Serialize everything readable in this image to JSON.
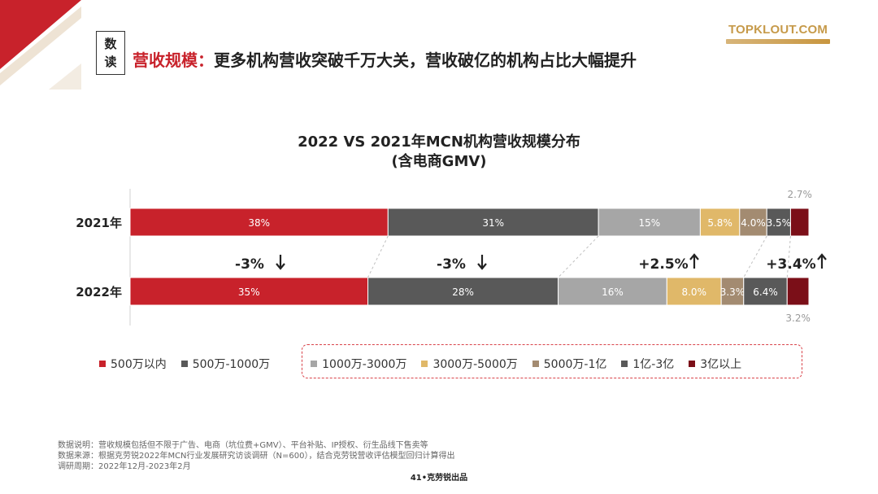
{
  "header": {
    "badge": [
      "数",
      "读"
    ],
    "title_accent": "营收规模：",
    "title_rest": "更多机构营收突破千万大关，营收破亿的机构占比大幅提升",
    "brand": "TOPKLOUT.COM"
  },
  "chart_data": {
    "type": "bar",
    "orientation": "horizontal",
    "stacked": true,
    "title": [
      "2022 VS 2021年MCN机构营收规模分布",
      "(含电商GMV)"
    ],
    "categories": [
      "2021年",
      "2022年"
    ],
    "series": [
      {
        "name": "500万以内",
        "values": [
          38,
          35
        ],
        "labels": [
          "38%",
          "35%"
        ],
        "color": "#c8222b"
      },
      {
        "name": "500万-1000万",
        "values": [
          31,
          28
        ],
        "labels": [
          "31%",
          "28%"
        ],
        "color": "#595959"
      },
      {
        "name": "1000万-3000万",
        "values": [
          15,
          16
        ],
        "labels": [
          "15%",
          "16%"
        ],
        "color": "#a6a6a6"
      },
      {
        "name": "3000万-5000万",
        "values": [
          5.8,
          8.0
        ],
        "labels": [
          "5.8%",
          "8.0%"
        ],
        "color": "#e0b869"
      },
      {
        "name": "5000万-1亿",
        "values": [
          4.0,
          3.3
        ],
        "labels": [
          "4.0%",
          "3.3%"
        ],
        "color": "#a38b71"
      },
      {
        "name": "1亿-3亿",
        "values": [
          3.5,
          6.4
        ],
        "labels": [
          "3.5%",
          "6.4%"
        ],
        "color": "#595959"
      },
      {
        "name": "3亿以上",
        "values": [
          2.7,
          3.2
        ],
        "labels": [
          "2.7%",
          "3.2%"
        ],
        "color": "#7b0f18"
      }
    ],
    "annotations": [
      "-3%",
      "-3%",
      "+2.5%",
      "+3.4%"
    ],
    "xlim": [
      0,
      100
    ]
  },
  "footer": {
    "notes": [
      "数据说明：营收规模包括但不限于广告、电商（坑位费+GMV）、平台补贴、IP授权、衍生品线下售卖等",
      "数据来源：根据克劳锐2022年MCN行业发展研究访谈调研（N=600），结合克劳锐营收评估模型回归计算得出",
      "调研周期：2022年12月-2023年2月"
    ],
    "page": "41•克劳锐出品"
  }
}
